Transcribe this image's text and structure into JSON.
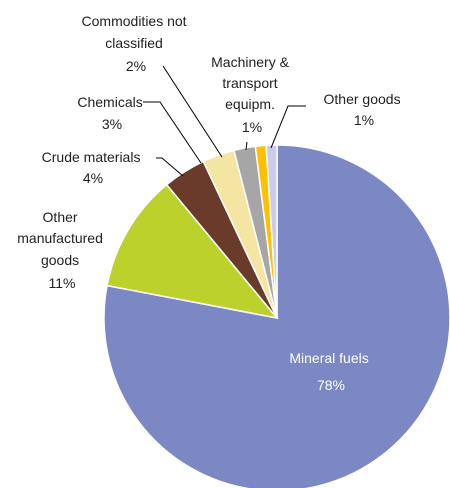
{
  "chart_data": {
    "type": "pie",
    "title": "",
    "slices": [
      {
        "label": "Mineral fuels",
        "value": 78,
        "pct_label": "78%",
        "color": "#7b88c4"
      },
      {
        "label": "Other manufactured goods",
        "value": 11,
        "pct_label": "11%",
        "color": "#bcd12c"
      },
      {
        "label": "Crude materials",
        "value": 4,
        "pct_label": "4%",
        "color": "#6a3a2a"
      },
      {
        "label": "Chemicals",
        "value": 3,
        "pct_label": "3%",
        "color": "#f4e6a2"
      },
      {
        "label": "Commodities not classified",
        "value": 2,
        "pct_label": "2%",
        "color": "#a6a6a6"
      },
      {
        "label": "Machinery & transport equipm.",
        "value": 1,
        "pct_label": "1%",
        "color": "#ffc000"
      },
      {
        "label": "Other goods",
        "value": 1,
        "pct_label": "1%",
        "color": "#c9ccea"
      }
    ],
    "legend": "none"
  }
}
